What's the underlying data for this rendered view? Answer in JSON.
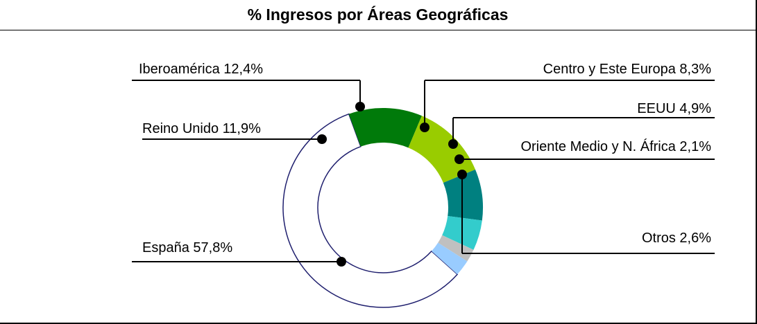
{
  "chart_data": {
    "type": "pie",
    "title": "% Ingresos por Áreas Geográficas",
    "categories": [
      "España",
      "Reino Unido",
      "Iberoamérica",
      "Centro y Este Europa",
      "EEUU",
      "Oriente Medio y N. África",
      "Otros"
    ],
    "values": [
      57.8,
      11.9,
      12.4,
      8.3,
      4.9,
      2.1,
      2.6
    ],
    "labels": [
      "España 57,8%",
      "Reino Unido 11,9%",
      "Iberoamérica 12,4%",
      "Centro y Este Europa 8,3%",
      "EEUU 4,9%",
      "Oriente Medio y N. África 2,1%",
      "Otros 2,6%"
    ],
    "colors": [
      "#ffffff",
      "#007a0a",
      "#99cc00",
      "#008080",
      "#33cccc",
      "#c0c0c0",
      "#99ccff"
    ],
    "outline_color": "#1f1f6e",
    "style": "donut",
    "legend": "callout labels"
  }
}
